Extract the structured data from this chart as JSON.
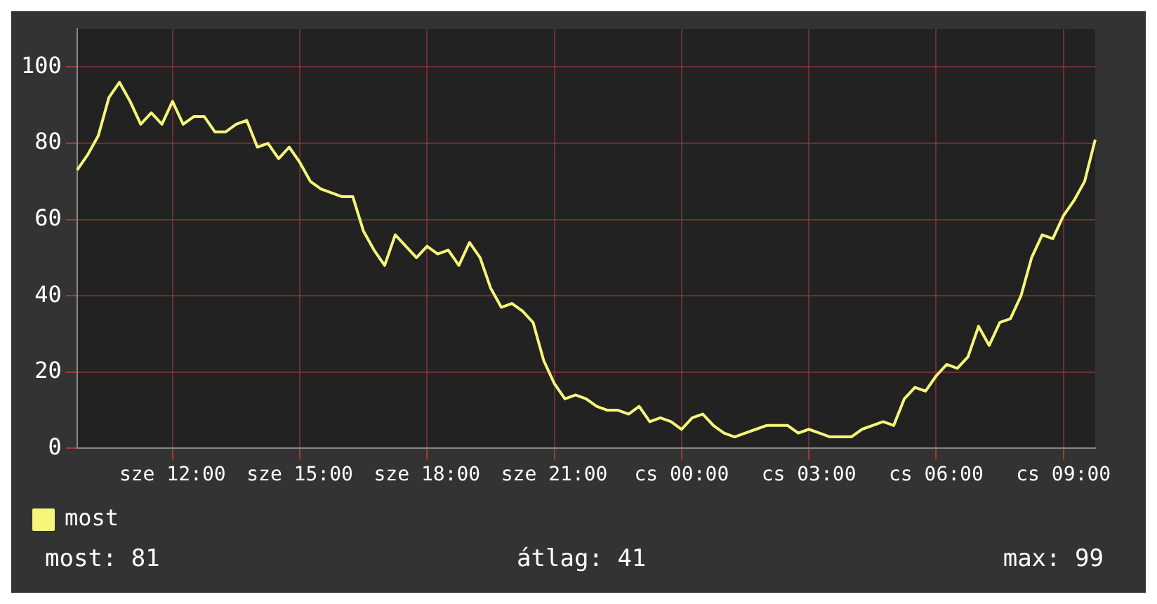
{
  "chart_data": {
    "type": "line",
    "categories": [
      null,
      null,
      null,
      null,
      null,
      null,
      null,
      null,
      null,
      "sze 12:00",
      null,
      null,
      null,
      null,
      null,
      null,
      null,
      null,
      null,
      null,
      null,
      "sze 15:00",
      null,
      null,
      null,
      null,
      null,
      null,
      null,
      null,
      null,
      null,
      null,
      "sze 18:00",
      null,
      null,
      null,
      null,
      null,
      null,
      null,
      null,
      null,
      null,
      null,
      "sze 21:00",
      null,
      null,
      null,
      null,
      null,
      null,
      null,
      null,
      null,
      null,
      null,
      "cs 00:00",
      null,
      null,
      null,
      null,
      null,
      null,
      null,
      null,
      null,
      null,
      null,
      "cs 03:00",
      null,
      null,
      null,
      null,
      null,
      null,
      null,
      null,
      null,
      null,
      null,
      "cs 06:00",
      null,
      null,
      null,
      null,
      null,
      null,
      null,
      null,
      null,
      null,
      null,
      "cs 09:00",
      null,
      null,
      null
    ],
    "series": [
      {
        "name": "most",
        "color": "#f5f57a",
        "values": [
          73,
          77,
          82,
          92,
          96,
          91,
          85,
          88,
          85,
          91,
          85,
          87,
          87,
          83,
          83,
          85,
          86,
          79,
          80,
          76,
          79,
          75,
          70,
          68,
          67,
          66,
          66,
          57,
          52,
          48,
          56,
          53,
          50,
          53,
          51,
          52,
          48,
          54,
          50,
          42,
          37,
          38,
          36,
          33,
          23,
          17,
          13,
          14,
          13,
          11,
          10,
          10,
          9,
          11,
          7,
          8,
          7,
          5,
          8,
          9,
          6,
          4,
          3,
          4,
          5,
          6,
          6,
          6,
          4,
          5,
          4,
          3,
          3,
          3,
          5,
          6,
          7,
          6,
          13,
          16,
          15,
          19,
          22,
          21,
          24,
          32,
          27,
          33,
          34,
          40,
          50,
          56,
          55,
          61,
          65,
          70,
          81
        ]
      }
    ],
    "ylim": [
      0,
      110
    ],
    "yticks": [
      0,
      20,
      40,
      60,
      80,
      100
    ],
    "grid": true,
    "legend": "bottom left",
    "marker": "none",
    "line_style": "solid",
    "annotations": [
      "most: 81",
      "átlag: 41",
      "max: 99"
    ]
  }
}
